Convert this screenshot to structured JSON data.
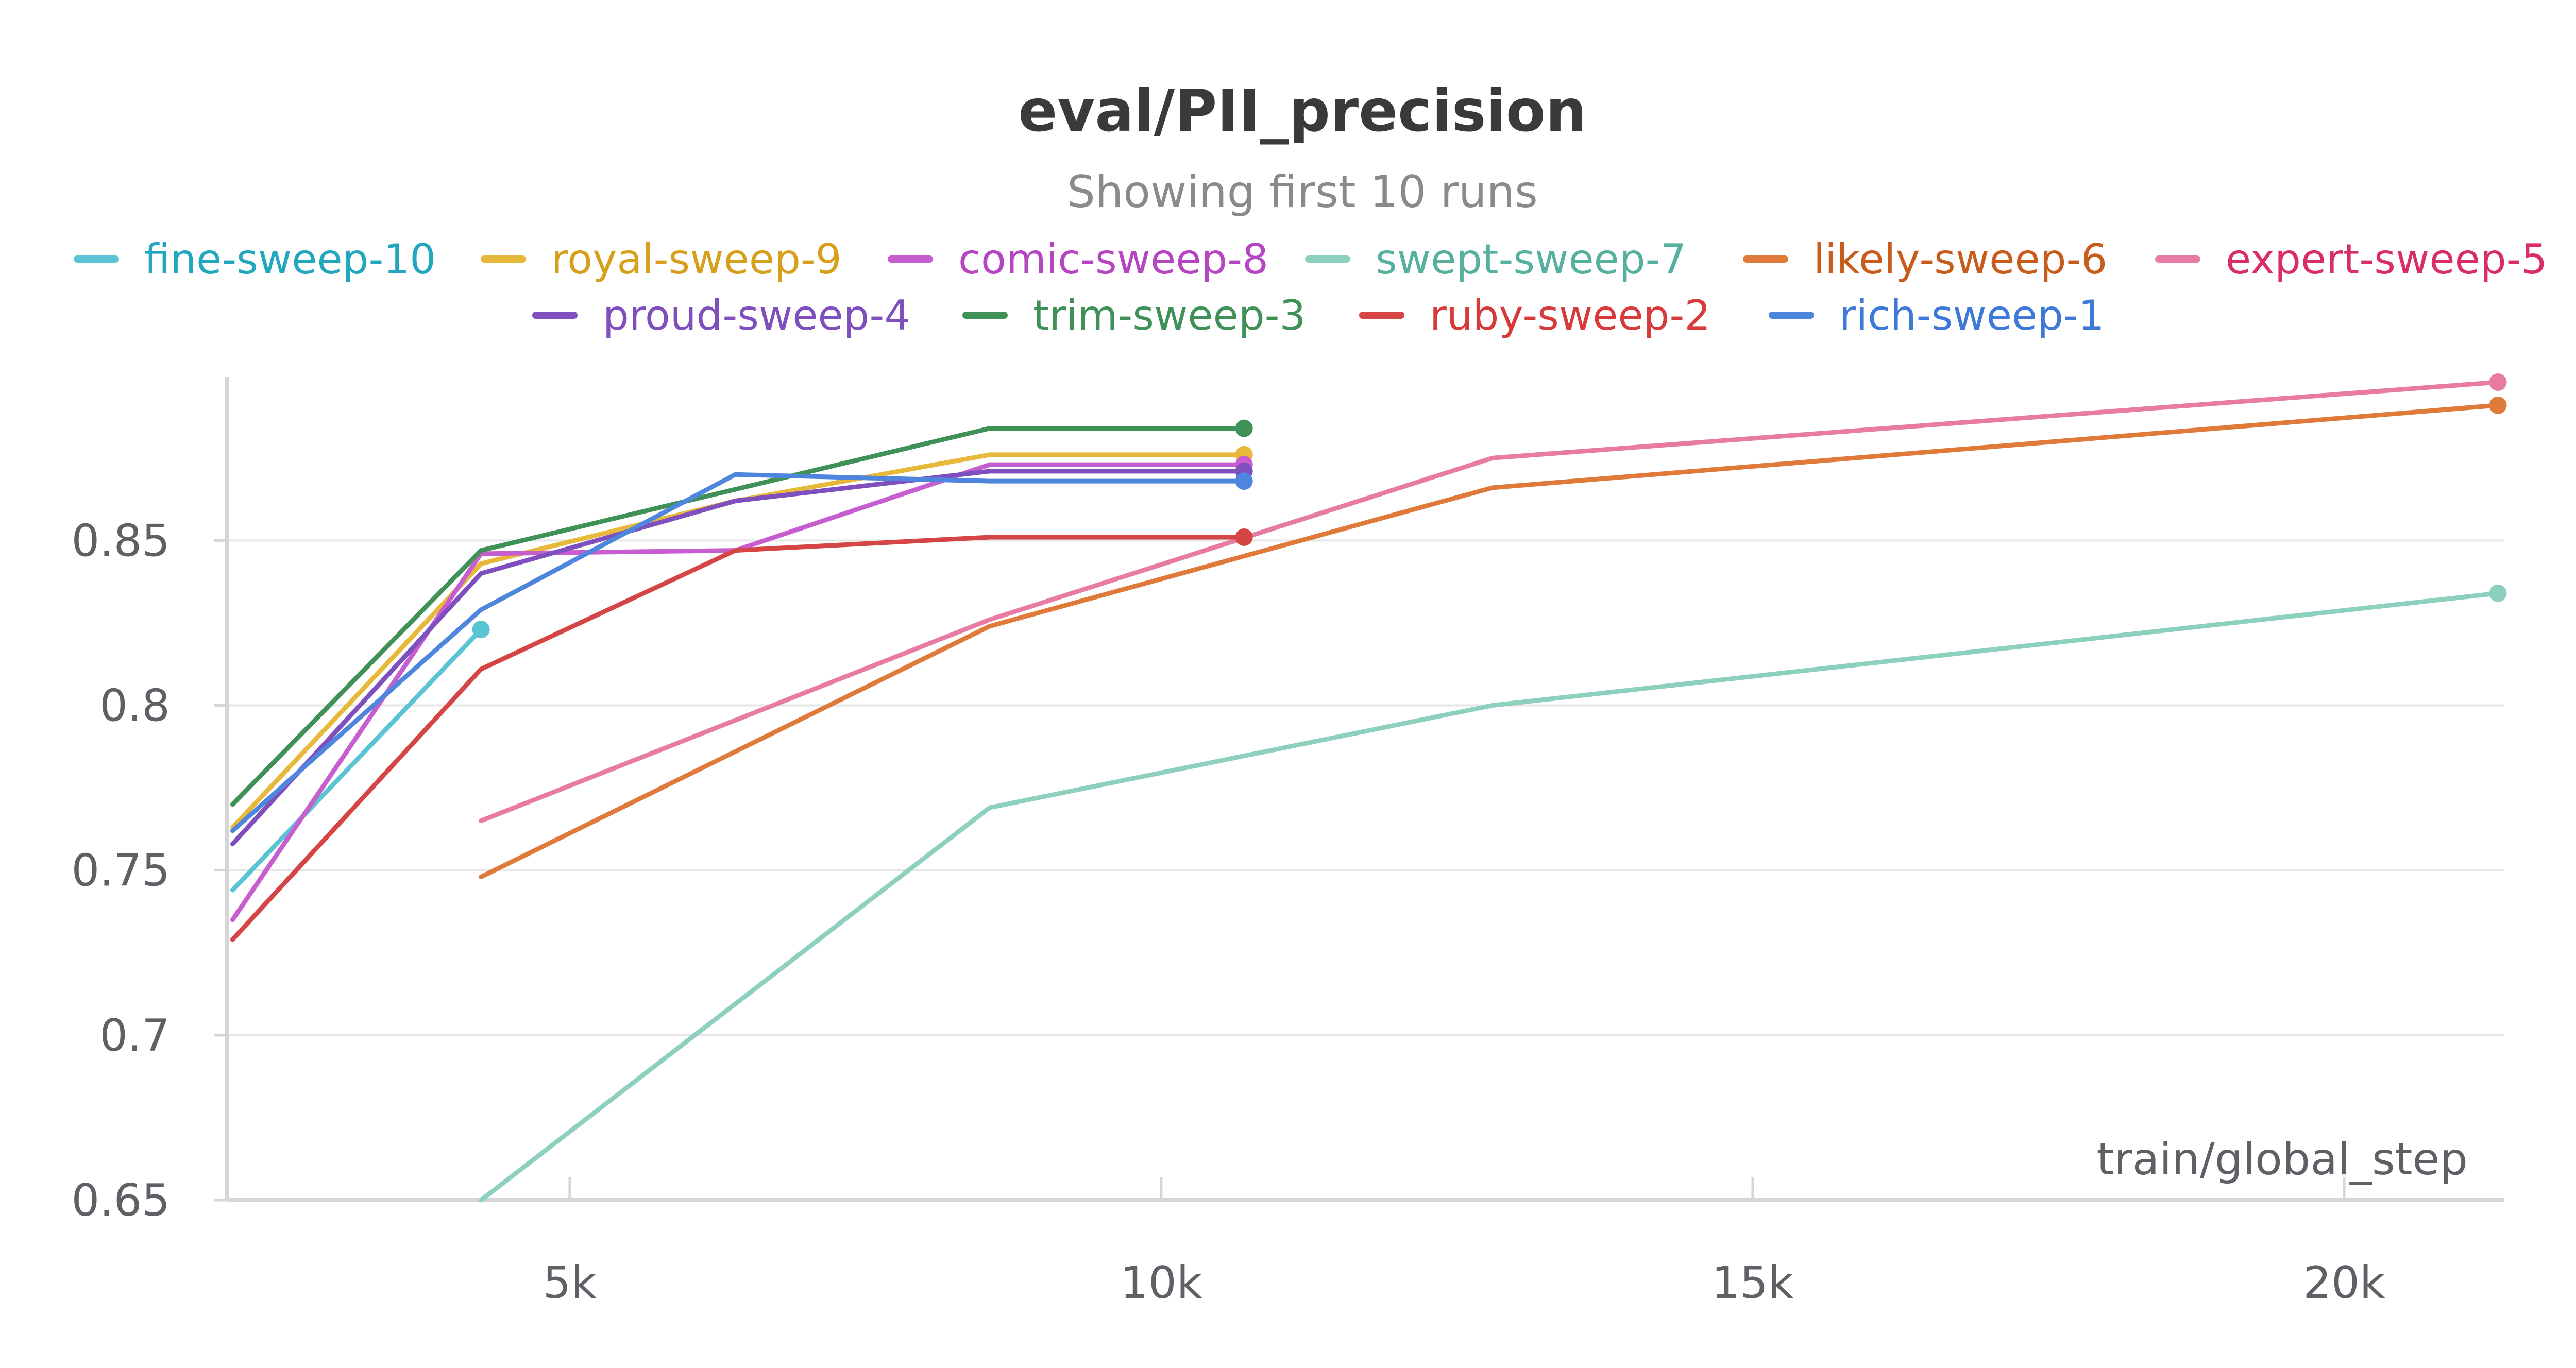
{
  "chart_data": {
    "type": "line",
    "title": "eval/PII_precision",
    "subtitle": "Showing first 10 runs",
    "xlabel": "train/global_step",
    "ylabel": "",
    "xlim": [
      2100,
      21350
    ],
    "ylim": [
      0.65,
      0.898
    ],
    "x_ticks": [
      {
        "value": 5000,
        "label": "5k"
      },
      {
        "value": 10000,
        "label": "10k"
      },
      {
        "value": 15000,
        "label": "15k"
      },
      {
        "value": 20000,
        "label": "20k"
      }
    ],
    "y_ticks": [
      {
        "value": 0.65,
        "label": "0.65"
      },
      {
        "value": 0.7,
        "label": "0.7"
      },
      {
        "value": 0.75,
        "label": "0.75"
      },
      {
        "value": 0.8,
        "label": "0.8"
      },
      {
        "value": 0.85,
        "label": "0.85"
      }
    ],
    "grid": true,
    "legend_position": "top",
    "series": [
      {
        "name": "fine-sweep-10",
        "color": "#5bc4d4",
        "text_color": "#22a7bf",
        "x": [
          2150,
          4250
        ],
        "y": [
          0.744,
          0.823
        ]
      },
      {
        "name": "royal-sweep-9",
        "color": "#e8b83a",
        "text_color": "#d6a01c",
        "x": [
          2150,
          4250,
          6400,
          8550,
          10700
        ],
        "y": [
          0.763,
          0.843,
          0.862,
          0.876,
          0.876
        ]
      },
      {
        "name": "comic-sweep-8",
        "color": "#c65ed0",
        "text_color": "#b545c1",
        "x": [
          2150,
          4250,
          6400,
          8550,
          10700
        ],
        "y": [
          0.735,
          0.846,
          0.847,
          0.873,
          0.873
        ]
      },
      {
        "name": "swept-sweep-7",
        "color": "#8ed0c0",
        "text_color": "#55b09e",
        "x": [
          4250,
          8550,
          12800,
          21300
        ],
        "y": [
          0.65,
          0.769,
          0.8,
          0.834
        ]
      },
      {
        "name": "likely-sweep-6",
        "color": "#e07a3a",
        "text_color": "#c85c1c",
        "x": [
          4250,
          8550,
          12800,
          21300
        ],
        "y": [
          0.748,
          0.824,
          0.866,
          0.891
        ]
      },
      {
        "name": "expert-sweep-5",
        "color": "#e87ba4",
        "text_color": "#d92d6a",
        "x": [
          4250,
          8550,
          12800,
          21300
        ],
        "y": [
          0.765,
          0.826,
          0.875,
          0.898
        ]
      },
      {
        "name": "proud-sweep-4",
        "color": "#7e4fbd",
        "text_color": "#7e4fbd",
        "x": [
          2150,
          4250,
          6400,
          8550,
          10700
        ],
        "y": [
          0.758,
          0.84,
          0.862,
          0.871,
          0.871
        ]
      },
      {
        "name": "trim-sweep-3",
        "color": "#3f9158",
        "text_color": "#3f9158",
        "x": [
          2150,
          4250,
          8550,
          10700
        ],
        "y": [
          0.77,
          0.847,
          0.884,
          0.884
        ]
      },
      {
        "name": "ruby-sweep-2",
        "color": "#d64545",
        "text_color": "#d63a3a",
        "x": [
          2150,
          4250,
          6400,
          8550,
          10700
        ],
        "y": [
          0.729,
          0.811,
          0.847,
          0.851,
          0.851
        ]
      },
      {
        "name": "rich-sweep-1",
        "color": "#4f86dd",
        "text_color": "#3f79d8",
        "x": [
          2150,
          4250,
          6400,
          8550,
          10700
        ],
        "y": [
          0.762,
          0.829,
          0.87,
          0.868,
          0.868
        ]
      }
    ]
  }
}
